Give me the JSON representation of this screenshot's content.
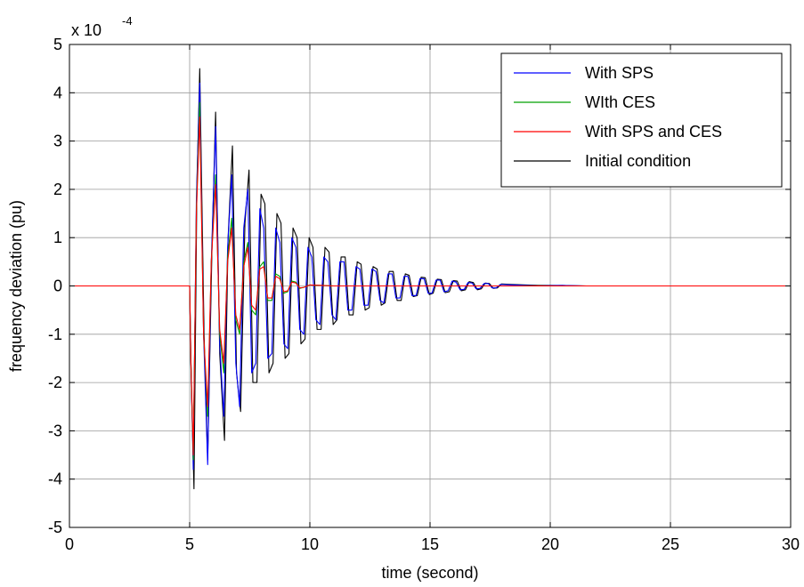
{
  "chart_data": {
    "type": "line",
    "xlabel": "time (second)",
    "ylabel": "frequency deviation (pu)",
    "y_scale_note": {
      "base": "x 10",
      "exponent": "-4"
    },
    "xlim": [
      0,
      30
    ],
    "ylim": [
      -5,
      5
    ],
    "x_ticks": [
      "0",
      "5",
      "10",
      "15",
      "20",
      "25",
      "30"
    ],
    "y_ticks": [
      "-5",
      "-4",
      "-3",
      "-2",
      "-1",
      "0",
      "1",
      "2",
      "3",
      "4",
      "5"
    ],
    "grid": true,
    "legend_position": "top-right",
    "y_units_multiplier": 0.0001,
    "series": [
      {
        "name": "With SPS",
        "color": "#0000ff",
        "x": [
          0,
          5.0,
          5.05,
          5.15,
          5.28,
          5.42,
          5.58,
          5.75,
          5.9,
          6.08,
          6.25,
          6.42,
          6.58,
          6.75,
          6.92,
          7.08,
          7.25,
          7.42,
          7.58,
          7.75,
          7.92,
          8.08,
          8.25,
          8.42,
          8.58,
          8.75,
          8.92,
          9.08,
          9.25,
          9.42,
          9.58,
          9.75,
          9.92,
          10.08,
          10.25,
          10.42,
          10.58,
          10.75,
          10.92,
          11.08,
          11.25,
          11.42,
          11.58,
          11.75,
          11.92,
          12.08,
          12.25,
          12.42,
          12.58,
          12.75,
          12.92,
          13.08,
          13.25,
          13.42,
          13.58,
          13.75,
          13.92,
          14.08,
          14.25,
          14.42,
          14.58,
          14.75,
          14.92,
          15.08,
          15.25,
          15.42,
          15.58,
          15.75,
          15.92,
          16.08,
          16.25,
          16.42,
          16.58,
          16.75,
          16.92,
          17.08,
          17.25,
          17.42,
          17.58,
          17.75,
          17.92,
          18.5,
          19.5,
          20.5,
          21.5,
          22.5,
          30
        ],
        "y": [
          0,
          0,
          -1.5,
          -3.8,
          1.8,
          4.2,
          -1.0,
          -3.7,
          0.5,
          3.3,
          -1.2,
          -2.7,
          0.8,
          2.3,
          -1.6,
          -2.5,
          1.2,
          2.0,
          -1.8,
          -1.6,
          1.6,
          1.2,
          -1.5,
          -1.4,
          1.2,
          0.9,
          -1.2,
          -1.3,
          1.0,
          0.8,
          -0.9,
          -1.0,
          0.8,
          0.6,
          -0.7,
          -0.8,
          0.6,
          0.5,
          -0.6,
          -0.7,
          0.5,
          0.5,
          -0.5,
          -0.5,
          0.4,
          0.35,
          -0.4,
          -0.4,
          0.35,
          0.3,
          -0.3,
          -0.35,
          0.25,
          0.25,
          -0.25,
          -0.25,
          0.2,
          0.2,
          -0.2,
          -0.2,
          0.15,
          0.15,
          -0.15,
          -0.15,
          0.12,
          0.12,
          -0.12,
          -0.1,
          0.1,
          0.08,
          -0.08,
          -0.07,
          0.07,
          0.06,
          -0.06,
          -0.05,
          0.05,
          0.05,
          -0.04,
          -0.04,
          0.03,
          0.02,
          0.0,
          0.01,
          0.0,
          0.0,
          0.0
        ]
      },
      {
        "name": "WIth CES",
        "color": "#00a000",
        "x": [
          0,
          5.0,
          5.05,
          5.15,
          5.28,
          5.42,
          5.58,
          5.75,
          5.9,
          6.08,
          6.25,
          6.42,
          6.58,
          6.75,
          6.92,
          7.08,
          7.25,
          7.42,
          7.58,
          7.75,
          7.92,
          8.08,
          8.25,
          8.42,
          8.58,
          8.75,
          8.92,
          9.08,
          9.25,
          9.42,
          9.58,
          9.75,
          10.0,
          10.5,
          11.0,
          12.0,
          13.0,
          14.0,
          30
        ],
        "y": [
          0,
          0,
          -1.5,
          -3.6,
          1.6,
          3.8,
          -1.0,
          -2.7,
          0.5,
          2.3,
          -1.0,
          -1.8,
          0.6,
          1.4,
          -0.7,
          -1.0,
          0.5,
          0.9,
          -0.5,
          -0.6,
          0.4,
          0.5,
          -0.3,
          -0.3,
          0.25,
          0.2,
          -0.15,
          -0.12,
          0.1,
          0.08,
          -0.05,
          -0.03,
          0.02,
          0.01,
          0.0,
          0.0,
          0.0,
          0.0,
          0.0
        ]
      },
      {
        "name": "With SPS and CES",
        "color": "#ff0000",
        "x": [
          0,
          5.0,
          5.05,
          5.15,
          5.28,
          5.42,
          5.58,
          5.75,
          5.9,
          6.08,
          6.25,
          6.42,
          6.58,
          6.75,
          6.92,
          7.08,
          7.25,
          7.42,
          7.58,
          7.75,
          7.92,
          8.08,
          8.25,
          8.42,
          8.58,
          8.75,
          8.92,
          9.08,
          9.25,
          9.42,
          9.58,
          9.75,
          10.0,
          10.5,
          11.0,
          12.0,
          13.0,
          14.0,
          30
        ],
        "y": [
          0,
          0,
          -1.5,
          -3.5,
          1.5,
          3.5,
          -1.0,
          -2.5,
          0.5,
          2.1,
          -0.9,
          -1.6,
          0.5,
          1.2,
          -0.6,
          -0.9,
          0.4,
          0.8,
          -0.4,
          -0.5,
          0.35,
          0.4,
          -0.25,
          -0.25,
          0.2,
          0.15,
          -0.12,
          -0.1,
          0.08,
          0.06,
          -0.04,
          -0.03,
          0.02,
          0.01,
          0.0,
          0.0,
          0.0,
          0.0,
          0.0
        ]
      },
      {
        "name": "Initial condition",
        "color": "#000000",
        "x": [
          0,
          5.0,
          5.05,
          5.18,
          5.3,
          5.42,
          5.6,
          5.75,
          5.93,
          6.08,
          6.25,
          6.45,
          6.6,
          6.78,
          6.95,
          7.12,
          7.3,
          7.47,
          7.63,
          7.8,
          7.97,
          8.13,
          8.3,
          8.47,
          8.63,
          8.8,
          8.97,
          9.13,
          9.3,
          9.47,
          9.63,
          9.8,
          9.97,
          10.13,
          10.3,
          10.47,
          10.63,
          10.8,
          10.97,
          11.13,
          11.3,
          11.47,
          11.63,
          11.8,
          11.97,
          12.13,
          12.3,
          12.47,
          12.63,
          12.8,
          12.97,
          13.13,
          13.3,
          13.47,
          13.63,
          13.8,
          13.97,
          14.13,
          14.3,
          14.47,
          14.63,
          14.8,
          14.97,
          15.13,
          15.3,
          15.47,
          15.63,
          15.8,
          15.97,
          16.13,
          16.3,
          16.47,
          16.63,
          16.8,
          16.97,
          17.13,
          17.3,
          17.47,
          17.63,
          17.8,
          17.97,
          18.5,
          19.5,
          20.5,
          21.5,
          22.5,
          30
        ],
        "y": [
          0,
          0,
          -1.6,
          -4.2,
          2.0,
          4.5,
          -1.0,
          -3.6,
          0.8,
          3.6,
          -1.4,
          -3.2,
          1.0,
          2.9,
          -1.8,
          -2.6,
          1.3,
          2.4,
          -2.0,
          -2.0,
          1.9,
          1.7,
          -1.8,
          -1.6,
          1.5,
          1.3,
          -1.5,
          -1.4,
          1.2,
          1.0,
          -1.2,
          -1.1,
          1.0,
          0.8,
          -0.9,
          -0.9,
          0.8,
          0.7,
          -0.8,
          -0.7,
          0.6,
          0.6,
          -0.6,
          -0.6,
          0.5,
          0.45,
          -0.5,
          -0.45,
          0.4,
          0.35,
          -0.4,
          -0.35,
          0.3,
          0.3,
          -0.3,
          -0.3,
          0.25,
          0.22,
          -0.22,
          -0.2,
          0.18,
          0.17,
          -0.18,
          -0.15,
          0.14,
          0.13,
          -0.14,
          -0.12,
          0.11,
          0.1,
          -0.1,
          -0.08,
          0.09,
          0.07,
          -0.08,
          -0.06,
          0.06,
          0.05,
          -0.05,
          -0.04,
          0.04,
          0.03,
          0.01,
          0.01,
          0.0,
          0.0,
          0.0
        ]
      }
    ]
  }
}
